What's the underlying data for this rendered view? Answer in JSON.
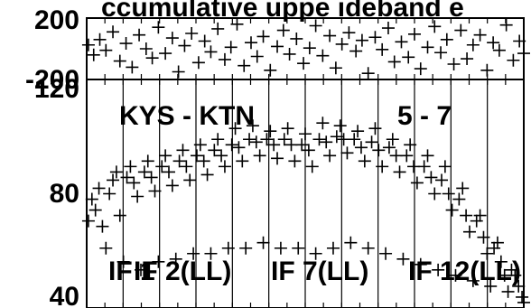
{
  "chart_data": [
    {
      "panel": "phase",
      "type": "scatter",
      "title": "ccumulative   uppe    ideband      e",
      "ylim": [
        -200,
        200
      ],
      "y_tick_labels": [
        {
          "value": 200,
          "label": "200"
        },
        {
          "value": -200,
          "label": "-200"
        }
      ],
      "series": [
        {
          "marker": "+",
          "color": "#000000",
          "points": [
            [
              2,
              25
            ],
            [
              8,
              -40
            ],
            [
              15,
              60
            ],
            [
              22,
              -10
            ],
            [
              30,
              110
            ],
            [
              38,
              -80
            ],
            [
              45,
              35
            ],
            [
              52,
              -120
            ],
            [
              60,
              90
            ],
            [
              68,
              0
            ],
            [
              75,
              -60
            ],
            [
              82,
              140
            ],
            [
              90,
              -30
            ],
            [
              98,
              70
            ],
            [
              105,
              -150
            ],
            [
              112,
              20
            ],
            [
              120,
              100
            ],
            [
              128,
              -90
            ],
            [
              135,
              50
            ],
            [
              142,
              -20
            ],
            [
              150,
              130
            ],
            [
              158,
              -70
            ],
            [
              165,
              10
            ],
            [
              172,
              160
            ],
            [
              180,
              -110
            ],
            [
              188,
              40
            ],
            [
              195,
              -50
            ],
            [
              202,
              80
            ],
            [
              210,
              -140
            ],
            [
              218,
              15
            ],
            [
              225,
              120
            ],
            [
              232,
              -35
            ],
            [
              240,
              65
            ],
            [
              248,
              -95
            ],
            [
              255,
              5
            ],
            [
              262,
              150
            ],
            [
              270,
              -45
            ],
            [
              278,
              85
            ],
            [
              285,
              -125
            ],
            [
              292,
              30
            ],
            [
              300,
              105
            ],
            [
              308,
              -15
            ],
            [
              315,
              55
            ],
            [
              322,
              -160
            ],
            [
              330,
              75
            ],
            [
              338,
              -5
            ],
            [
              345,
              135
            ],
            [
              352,
              -85
            ],
            [
              360,
              45
            ],
            [
              368,
              -55
            ],
            [
              375,
              95
            ],
            [
              382,
              -130
            ],
            [
              390,
              10
            ],
            [
              398,
              145
            ],
            [
              405,
              -25
            ],
            [
              412,
              60
            ],
            [
              420,
              -100
            ],
            [
              428,
              120
            ],
            [
              435,
              -65
            ],
            [
              442,
              25
            ],
            [
              450,
              90
            ],
            [
              458,
              -140
            ],
            [
              465,
              40
            ],
            [
              472,
              -10
            ],
            [
              480,
              155
            ],
            [
              488,
              -75
            ],
            [
              495,
              50
            ],
            [
              500,
              -30
            ]
          ]
        }
      ]
    },
    {
      "panel": "amplitude",
      "type": "scatter",
      "ylim": [
        38,
        122
      ],
      "y_tick_labels": [
        {
          "value": 120,
          "label": "120"
        },
        {
          "value": 80,
          "label": "80"
        },
        {
          "value": 40,
          "label": "40"
        }
      ],
      "annotations": [
        "KYS - KTN",
        "5 - 7",
        "IF 1",
        "IF 2(LL)",
        "IF 7(LL)",
        "IF 12(LL)"
      ],
      "series": [
        {
          "marker": "+",
          "color": "#000000",
          "points": [
            [
              2,
              70
            ],
            [
              6,
              78
            ],
            [
              10,
              74
            ],
            [
              14,
              82
            ],
            [
              18,
              68
            ],
            [
              22,
              60
            ],
            [
              26,
              80
            ],
            [
              30,
              85
            ],
            [
              34,
              88
            ],
            [
              38,
              72
            ],
            [
              42,
              55
            ],
            [
              46,
              86
            ],
            [
              50,
              90
            ],
            [
              54,
              84
            ],
            [
              58,
              79
            ],
            [
              62,
              52
            ],
            [
              66,
              88
            ],
            [
              70,
              92
            ],
            [
              74,
              86
            ],
            [
              78,
              81
            ],
            [
              82,
              55
            ],
            [
              86,
              90
            ],
            [
              90,
              94
            ],
            [
              94,
              88
            ],
            [
              98,
              83
            ],
            [
              102,
              56
            ],
            [
              106,
              92
            ],
            [
              110,
              96
            ],
            [
              114,
              90
            ],
            [
              118,
              85
            ],
            [
              122,
              58
            ],
            [
              126,
              94
            ],
            [
              130,
              98
            ],
            [
              134,
              92
            ],
            [
              138,
              87
            ],
            [
              142,
              58
            ],
            [
              146,
              96
            ],
            [
              150,
              100
            ],
            [
              154,
              94
            ],
            [
              158,
              90
            ],
            [
              162,
              60
            ],
            [
              166,
              98
            ],
            [
              170,
              104
            ],
            [
              174,
              97
            ],
            [
              178,
              92
            ],
            [
              182,
              60
            ],
            [
              186,
              100
            ],
            [
              190,
              105
            ],
            [
              194,
              99
            ],
            [
              198,
              94
            ],
            [
              202,
              62
            ],
            [
              206,
              100
            ],
            [
              210,
              103
            ],
            [
              214,
              98
            ],
            [
              218,
              93
            ],
            [
              222,
              60
            ],
            [
              226,
              100
            ],
            [
              230,
              104
            ],
            [
              234,
              98
            ],
            [
              238,
              92
            ],
            [
              242,
              60
            ],
            [
              246,
              98
            ],
            [
              250,
              102
            ],
            [
              254,
              96
            ],
            [
              258,
              90
            ],
            [
              262,
              58
            ],
            [
              266,
              100
            ],
            [
              270,
              106
            ],
            [
              274,
              99
            ],
            [
              278,
              94
            ],
            [
              282,
              60
            ],
            [
              286,
              101
            ],
            [
              290,
              105
            ],
            [
              294,
              100
            ],
            [
              298,
              95
            ],
            [
              302,
              62
            ],
            [
              306,
              100
            ],
            [
              310,
              103
            ],
            [
              314,
              97
            ],
            [
              318,
              92
            ],
            [
              322,
              60
            ],
            [
              326,
              99
            ],
            [
              330,
              104
            ],
            [
              334,
              96
            ],
            [
              338,
              90
            ],
            [
              342,
              58
            ],
            [
              346,
              97
            ],
            [
              350,
              100
            ],
            [
              354,
              94
            ],
            [
              358,
              88
            ],
            [
              362,
              56
            ],
            [
              366,
              94
            ],
            [
              370,
              98
            ],
            [
              374,
              90
            ],
            [
              378,
              84
            ],
            [
              382,
              54
            ],
            [
              386,
              90
            ],
            [
              390,
              94
            ],
            [
              394,
              86
            ],
            [
              398,
              80
            ],
            [
              402,
              52
            ],
            [
              406,
              85
            ],
            [
              410,
              90
            ],
            [
              414,
              80
            ],
            [
              418,
              74
            ],
            [
              422,
              50
            ],
            [
              426,
              78
            ],
            [
              430,
              82
            ],
            [
              434,
              72
            ],
            [
              438,
              66
            ],
            [
              442,
              48
            ],
            [
              446,
              70
            ],
            [
              450,
              72
            ],
            [
              454,
              64
            ],
            [
              458,
              58
            ],
            [
              462,
              46
            ],
            [
              466,
              60
            ],
            [
              470,
              62
            ],
            [
              474,
              55
            ],
            [
              478,
              50
            ],
            [
              482,
              44
            ],
            [
              486,
              52
            ],
            [
              490,
              50
            ],
            [
              494,
              46
            ],
            [
              498,
              42
            ],
            [
              500,
              40
            ]
          ]
        }
      ]
    }
  ]
}
